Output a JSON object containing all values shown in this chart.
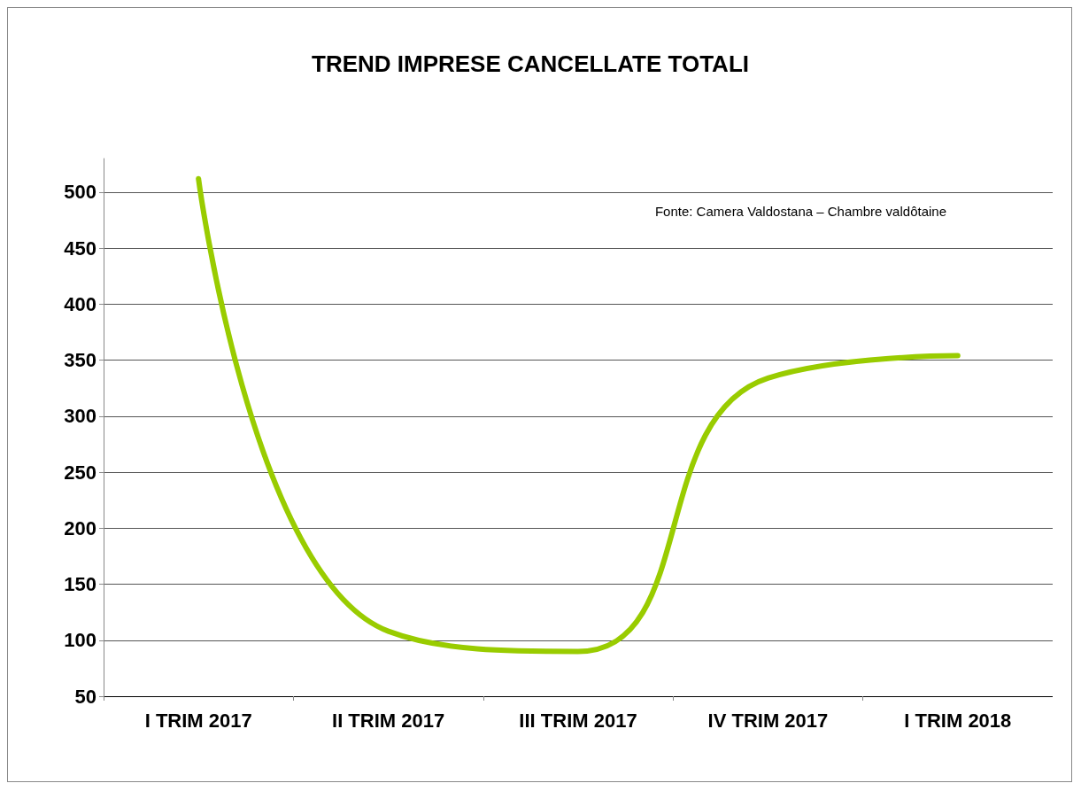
{
  "chart_data": {
    "type": "line",
    "title": "TREND IMPRESE CANCELLATE TOTALI",
    "categories": [
      "I TRIM 2017",
      "II TRIM 2017",
      "III TRIM 2017",
      "IV TRIM 2017",
      "I TRIM 2018"
    ],
    "series": [
      {
        "color": "#99cc00",
        "values": [
          512,
          108,
          90,
          334,
          354
        ]
      }
    ],
    "ylim": [
      50,
      530
    ],
    "yticks": [
      50,
      100,
      150,
      200,
      250,
      300,
      350,
      400,
      450,
      500
    ],
    "grid": "y",
    "marker": "none",
    "line_style": "solid",
    "annotations": [
      "Fonte: Camera Valdostana – Chambre valdôtaine"
    ]
  }
}
